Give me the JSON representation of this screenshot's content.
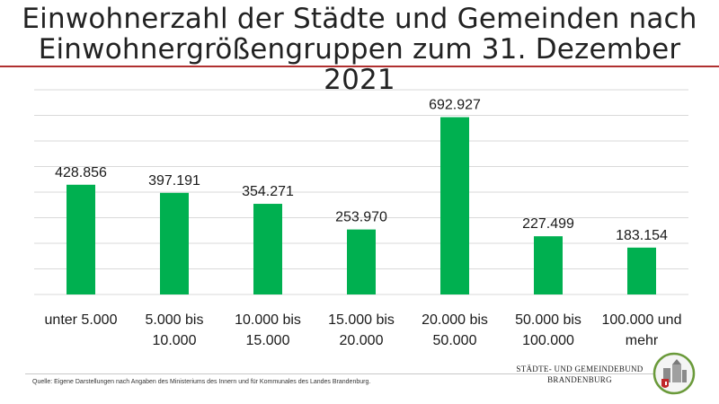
{
  "title_line1": "Einwohnerzahl der Städte und Gemeinden nach",
  "title_line2": "Einwohnergrößengruppen zum 31. Dezember 2021",
  "source": "Quelle: Eigene Darstellungen nach Angaben des Ministeriums des Innern und für Kommunales des Landes Brandenburg.",
  "org_line1": "STÄDTE- UND GEMEINDEBUND",
  "org_line2": "BRANDENBURG",
  "colors": {
    "bar": "#00b050",
    "grid": "#d9d9d9",
    "title_rule": "#b03030"
  },
  "chart_data": {
    "type": "bar",
    "title": "Einwohnerzahl der Städte und Gemeinden nach Einwohnergrößengruppen zum 31. Dezember 2021",
    "xlabel": "",
    "ylabel": "",
    "ylim": [
      0,
      800000
    ],
    "grid": true,
    "categories": [
      [
        "unter 5.000"
      ],
      [
        "5.000 bis",
        "10.000"
      ],
      [
        "10.000 bis",
        "15.000"
      ],
      [
        "15.000 bis",
        "20.000"
      ],
      [
        "20.000 bis",
        "50.000"
      ],
      [
        "50.000 bis",
        "100.000"
      ],
      [
        "100.000 und",
        "mehr"
      ]
    ],
    "values": [
      428856,
      397191,
      354271,
      253970,
      692927,
      227499,
      183154
    ],
    "labels": [
      "428.856",
      "397.191",
      "354.271",
      "253.970",
      "692.927",
      "227.499",
      "183.154"
    ]
  }
}
